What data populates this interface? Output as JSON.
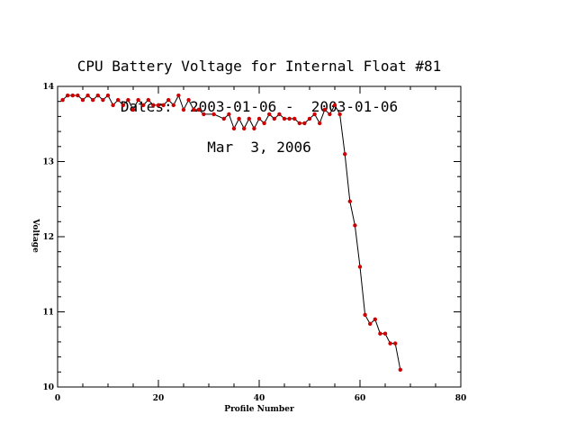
{
  "chart_data": {
    "type": "line",
    "title": "CPU Battery Voltage for Internal Float #81",
    "subtitle": "Dates:  2003-01-06 -  2003-01-06",
    "date_line": "Mar  3, 2006",
    "xlabel": "Profile Number",
    "ylabel": "Voltage",
    "xlim": [
      0,
      80
    ],
    "ylim": [
      10,
      14
    ],
    "x_ticks": [
      0,
      20,
      40,
      60,
      80
    ],
    "y_ticks": [
      10,
      11,
      12,
      13,
      14
    ],
    "grid": false,
    "line_color": "#000000",
    "marker_color": "#cc0000",
    "series": [
      {
        "x": [
          1,
          2,
          3,
          4,
          5,
          6,
          7,
          8,
          9,
          10,
          11,
          12,
          13,
          14,
          15,
          16,
          17,
          18,
          19,
          20,
          21,
          22,
          23,
          24,
          25,
          26,
          27,
          28,
          29,
          31,
          33,
          34,
          35,
          36,
          37,
          38,
          39,
          40,
          41,
          42,
          43,
          44,
          45,
          46,
          47,
          48,
          49,
          50,
          51,
          52,
          53,
          54,
          55,
          56,
          57,
          58,
          59,
          60,
          61,
          62,
          63,
          64,
          65,
          66,
          67,
          68
        ],
        "y": [
          13.82,
          13.88,
          13.88,
          13.88,
          13.82,
          13.88,
          13.82,
          13.88,
          13.82,
          13.88,
          13.75,
          13.82,
          13.75,
          13.82,
          13.69,
          13.82,
          13.75,
          13.82,
          13.75,
          13.75,
          13.75,
          13.82,
          13.75,
          13.88,
          13.69,
          13.82,
          13.69,
          13.69,
          13.63,
          13.63,
          13.57,
          13.63,
          13.44,
          13.57,
          13.44,
          13.57,
          13.44,
          13.57,
          13.51,
          13.63,
          13.57,
          13.63,
          13.57,
          13.57,
          13.57,
          13.51,
          13.51,
          13.57,
          13.63,
          13.51,
          13.69,
          13.63,
          13.75,
          13.63,
          13.1,
          12.47,
          12.15,
          11.6,
          10.96,
          10.84,
          10.9,
          10.71,
          10.71,
          10.58,
          10.58,
          10.23
        ]
      }
    ]
  }
}
